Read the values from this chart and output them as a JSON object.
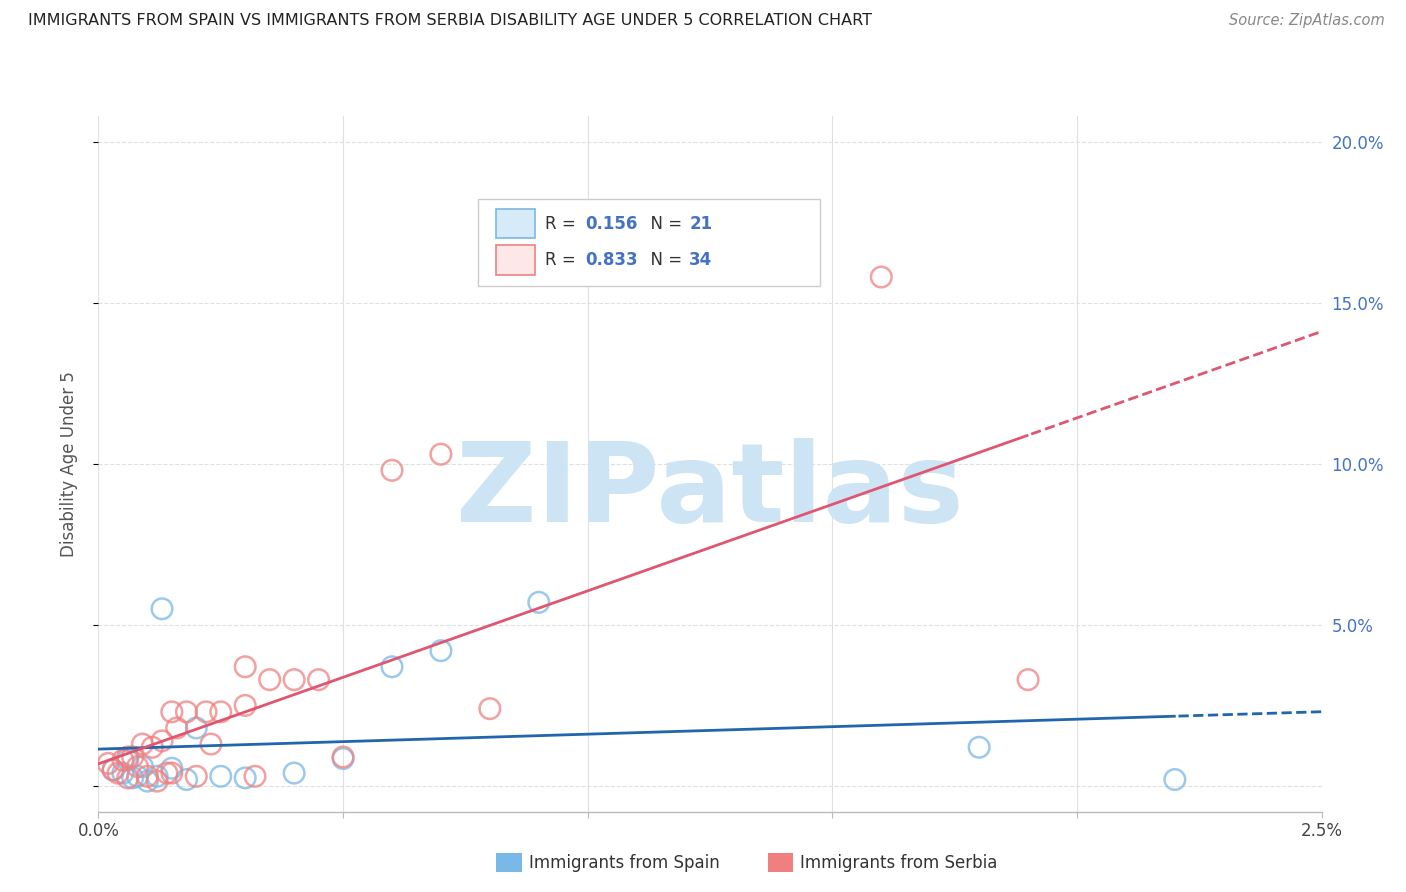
{
  "title": "IMMIGRANTS FROM SPAIN VS IMMIGRANTS FROM SERBIA DISABILITY AGE UNDER 5 CORRELATION CHART",
  "source": "Source: ZipAtlas.com",
  "ylabel": "Disability Age Under 5",
  "xlim": [
    0.0,
    0.025
  ],
  "ylim": [
    -0.008,
    0.208
  ],
  "yticks": [
    0.0,
    0.05,
    0.1,
    0.15,
    0.2
  ],
  "ytick_labels": [
    "",
    "5.0%",
    "10.0%",
    "15.0%",
    "20.0%"
  ],
  "xticks": [
    0.0,
    0.005,
    0.01,
    0.015,
    0.02,
    0.025
  ],
  "xtick_labels": [
    "0.0%",
    "",
    "",
    "",
    "",
    "2.5%"
  ],
  "spain_color": "#7ab8e8",
  "serbia_color": "#f08080",
  "spain_line_color": "#2166ac",
  "serbia_line_color": "#e05570",
  "spain_R": 0.156,
  "spain_N": 21,
  "serbia_R": 0.833,
  "serbia_N": 34,
  "spain_x": [
    0.0003,
    0.0005,
    0.0006,
    0.0007,
    0.0008,
    0.0009,
    0.001,
    0.0012,
    0.0013,
    0.0015,
    0.0018,
    0.002,
    0.0025,
    0.003,
    0.004,
    0.005,
    0.006,
    0.007,
    0.009,
    0.018,
    0.022
  ],
  "spain_y": [
    0.005,
    0.004,
    0.008,
    0.0025,
    0.003,
    0.006,
    0.0015,
    0.003,
    0.055,
    0.0055,
    0.002,
    0.018,
    0.003,
    0.0025,
    0.004,
    0.0085,
    0.037,
    0.042,
    0.057,
    0.012,
    0.002
  ],
  "serbia_x": [
    0.0002,
    0.0003,
    0.0004,
    0.0005,
    0.0006,
    0.0006,
    0.0007,
    0.0008,
    0.0009,
    0.001,
    0.0011,
    0.0012,
    0.0013,
    0.0014,
    0.0015,
    0.0015,
    0.0016,
    0.0018,
    0.002,
    0.0022,
    0.0023,
    0.0025,
    0.003,
    0.003,
    0.0032,
    0.0035,
    0.004,
    0.0045,
    0.005,
    0.006,
    0.007,
    0.008,
    0.016,
    0.019
  ],
  "serbia_y": [
    0.007,
    0.005,
    0.004,
    0.008,
    0.009,
    0.0025,
    0.009,
    0.006,
    0.013,
    0.003,
    0.012,
    0.0015,
    0.014,
    0.004,
    0.023,
    0.004,
    0.018,
    0.023,
    0.003,
    0.023,
    0.013,
    0.023,
    0.037,
    0.025,
    0.003,
    0.033,
    0.033,
    0.033,
    0.009,
    0.098,
    0.103,
    0.024,
    0.158,
    0.033
  ],
  "background_color": "#ffffff",
  "grid_color": "#e0e0e0",
  "watermark_text": "ZIPatlas",
  "watermark_color": "#cce4f4"
}
